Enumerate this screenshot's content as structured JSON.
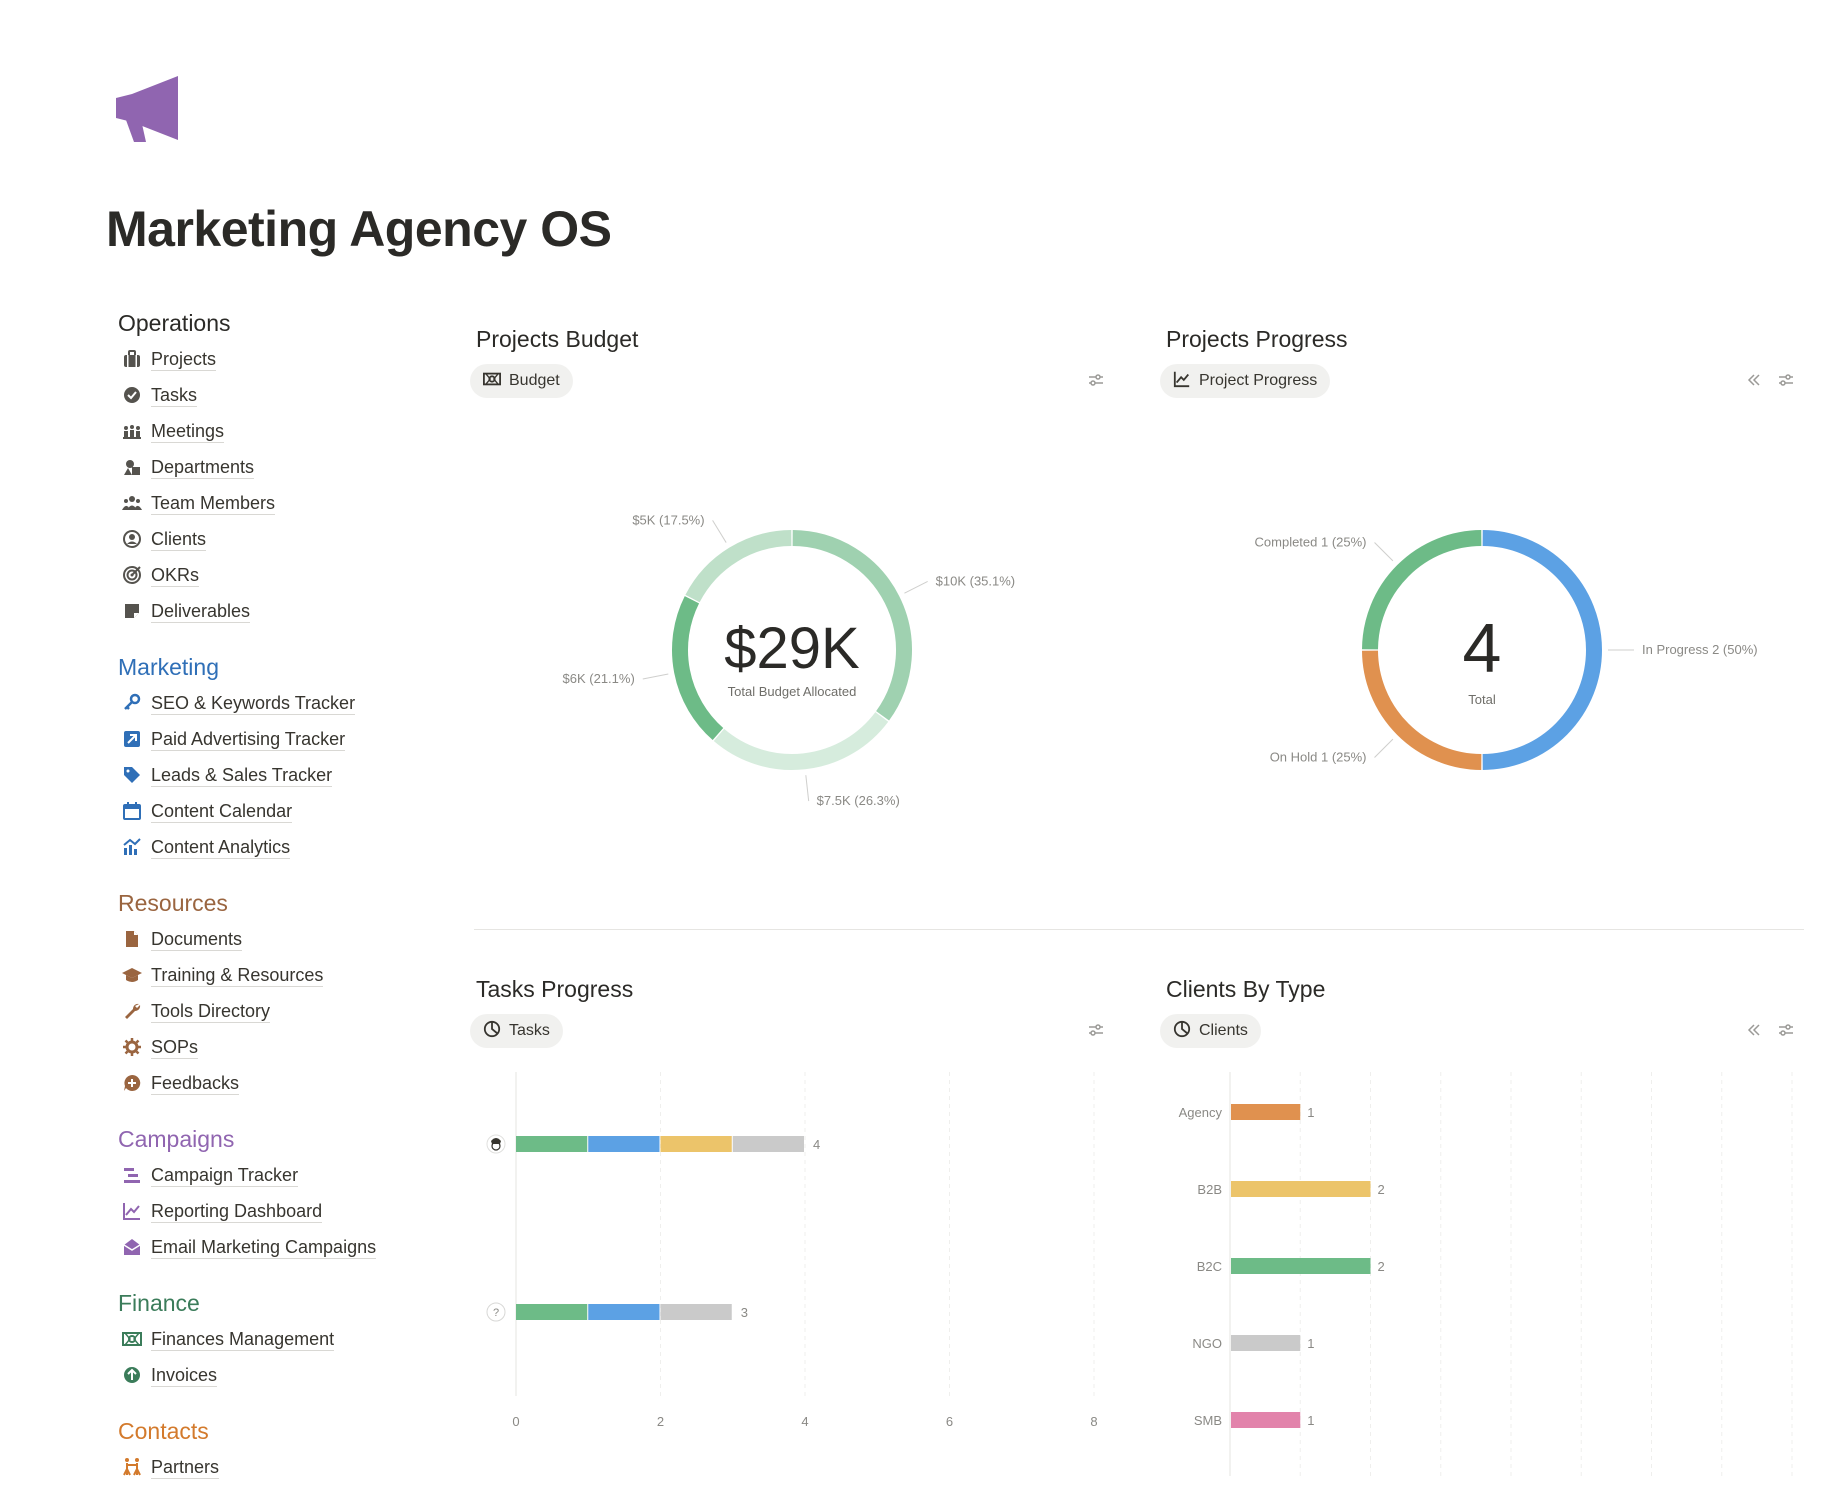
{
  "page": {
    "title": "Marketing Agency OS",
    "icon": "megaphone-icon",
    "accent": "#9065b0"
  },
  "sidebar": {
    "sections": [
      {
        "title": "Operations",
        "color": "#2b2a27",
        "items": [
          {
            "label": "Projects",
            "icon": "briefcase-icon"
          },
          {
            "label": "Tasks",
            "icon": "checkmark-circle-icon"
          },
          {
            "label": "Meetings",
            "icon": "people-group-icon"
          },
          {
            "label": "Departments",
            "icon": "shapes-icon"
          },
          {
            "label": "Team Members",
            "icon": "people-icon"
          },
          {
            "label": "Clients",
            "icon": "user-circle-icon"
          },
          {
            "label": "OKRs",
            "icon": "target-icon"
          },
          {
            "label": "Deliverables",
            "icon": "note-icon"
          }
        ]
      },
      {
        "title": "Marketing",
        "color": "#2f6fb7",
        "items": [
          {
            "label": "SEO & Keywords Tracker",
            "icon": "key-icon"
          },
          {
            "label": "Paid Advertising Tracker",
            "icon": "arrow-up-right-icon"
          },
          {
            "label": "Leads & Sales Tracker",
            "icon": "tag-icon"
          },
          {
            "label": "Content Calendar",
            "icon": "calendar-icon"
          },
          {
            "label": "Content Analytics",
            "icon": "chart-icon"
          }
        ]
      },
      {
        "title": "Resources",
        "color": "#9a6540",
        "items": [
          {
            "label": "Documents",
            "icon": "document-icon"
          },
          {
            "label": "Training & Resources",
            "icon": "graduation-cap-icon"
          },
          {
            "label": "Tools Directory",
            "icon": "wrench-icon"
          },
          {
            "label": "SOPs",
            "icon": "gear-icon"
          },
          {
            "label": "Feedbacks",
            "icon": "chat-plus-icon"
          }
        ]
      },
      {
        "title": "Campaigns",
        "color": "#9065b0",
        "items": [
          {
            "label": "Campaign Tracker",
            "icon": "timeline-icon"
          },
          {
            "label": "Reporting Dashboard",
            "icon": "line-chart-icon"
          },
          {
            "label": "Email Marketing Campaigns",
            "icon": "envelope-open-icon"
          }
        ]
      },
      {
        "title": "Finance",
        "color": "#3b7c5a",
        "items": [
          {
            "label": "Finances Management",
            "icon": "money-icon"
          },
          {
            "label": "Invoices",
            "icon": "arrow-up-circle-icon"
          }
        ]
      },
      {
        "title": "Contacts",
        "color": "#d37a2c",
        "items": [
          {
            "label": "Partners",
            "icon": "partners-icon"
          }
        ]
      }
    ]
  },
  "panels": {
    "budget": {
      "title": "Projects Budget",
      "chip": "Budget",
      "chip_icon": "money-icon"
    },
    "progress": {
      "title": "Projects Progress",
      "chip": "Project Progress",
      "chip_icon": "line-chart-icon"
    },
    "tasks": {
      "title": "Tasks Progress",
      "chip": "Tasks",
      "chip_icon": "pie-chart-icon"
    },
    "clients": {
      "title": "Clients By Type",
      "chip": "Clients",
      "chip_icon": "pie-chart-icon"
    }
  },
  "chart_data": [
    {
      "id": "budget",
      "type": "pie",
      "donut": true,
      "center_value": "$29K",
      "center_label": "Total Budget Allocated",
      "slices": [
        {
          "label": "$10K (35.1%)",
          "value": 35.1,
          "color": "#9fd1b0"
        },
        {
          "label": "$7.5K (26.3%)",
          "value": 26.3,
          "color": "#d6ecdd"
        },
        {
          "label": "$6K (21.1%)",
          "value": 21.1,
          "color": "#6dbb87"
        },
        {
          "label": "$5K (17.5%)",
          "value": 17.5,
          "color": "#bfe0c9"
        }
      ]
    },
    {
      "id": "progress",
      "type": "pie",
      "donut": true,
      "center_value": "4",
      "center_label": "Total",
      "slices": [
        {
          "label": "In Progress  2 (50%)",
          "value": 50,
          "color": "#5ca1e4"
        },
        {
          "label": "On Hold  1 (25%)",
          "value": 25,
          "color": "#e0914f"
        },
        {
          "label": "Completed  1 (25%)",
          "value": 25,
          "color": "#6dbb87"
        }
      ]
    },
    {
      "id": "tasks",
      "type": "bar",
      "orientation": "horizontal",
      "stacked": true,
      "rows": [
        {
          "icon": "avatar-icon",
          "segments": [
            {
              "value": 1,
              "color": "#6dbb87"
            },
            {
              "value": 1,
              "color": "#5ca1e4"
            },
            {
              "value": 1,
              "color": "#ecc46a"
            },
            {
              "value": 1,
              "color": "#cacaca"
            }
          ],
          "total": "4"
        },
        {
          "icon": "question-icon",
          "segments": [
            {
              "value": 1,
              "color": "#6dbb87"
            },
            {
              "value": 1,
              "color": "#5ca1e4"
            },
            {
              "value": 1,
              "color": "#cacaca"
            }
          ],
          "total": "3"
        }
      ],
      "xticks": [
        "0",
        "2",
        "4",
        "6",
        "8"
      ],
      "xlim": [
        0,
        8
      ],
      "grid": true
    },
    {
      "id": "clients",
      "type": "bar",
      "orientation": "horizontal",
      "categories": [
        "Agency",
        "B2B",
        "B2C",
        "NGO",
        "SMB"
      ],
      "values": [
        1,
        2,
        2,
        1,
        1
      ],
      "value_labels": [
        "1",
        "2",
        "2",
        "1",
        "1"
      ],
      "colors": [
        "#e0914f",
        "#ecc46a",
        "#6dbb87",
        "#cacaca",
        "#e283ab"
      ],
      "xlim": [
        0,
        8
      ],
      "grid": true
    }
  ]
}
